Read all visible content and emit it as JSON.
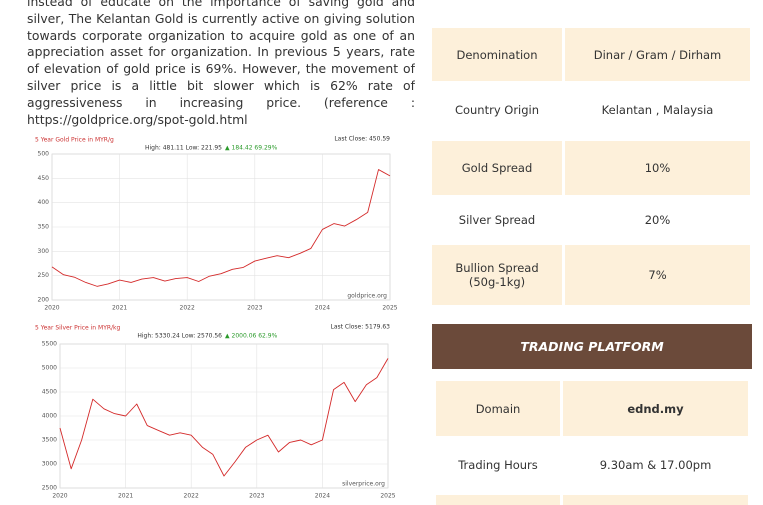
{
  "document": {
    "paragraph_lines": [
      "instead of educate on the importance of saving gold and",
      "silver, The Kelantan Gold is currently active on giving solution",
      "towards corporate organization to acquire gold as one of an",
      "appreciation asset for organization. In previous 5 years, rate",
      "of elevation of gold price is 69%. However, the movement of",
      "silver price is a little bit slower which is 62% rate of",
      "aggressiveness in increasing price. (reference :",
      "https://goldprice.org/spot-gold.html"
    ],
    "table": {
      "rows": [
        [
          "Denomination",
          "Dinar / Gram / Dirham"
        ],
        [
          "Country Origin",
          "Kelantan , Malaysia"
        ],
        [
          "Gold Spread",
          "10%"
        ],
        [
          "Silver Spread",
          "20%"
        ],
        [
          "Bullion Spread (50g-1kg)",
          "7%"
        ]
      ]
    },
    "trading_platform": {
      "title": "TRADING PLATFORM",
      "rows": [
        [
          "Domain",
          "ednd.my"
        ],
        [
          "Trading Hours",
          "9.30am & 17.00pm"
        ]
      ]
    }
  },
  "chart_data": [
    {
      "type": "line",
      "title": "5 Year Gold Price in MYR/g",
      "stats": "High: 481.11 Low: 221.95",
      "change": "▲ 184.42 69.29%",
      "last_close": "Last Close: 450.59",
      "source": "goldprice.org",
      "x": [
        2020,
        2020.17,
        2020.33,
        2020.5,
        2020.67,
        2020.83,
        2021,
        2021.17,
        2021.33,
        2021.5,
        2021.67,
        2021.83,
        2022,
        2022.17,
        2022.33,
        2022.5,
        2022.67,
        2022.83,
        2023,
        2023.17,
        2023.33,
        2023.5,
        2023.67,
        2023.83,
        2024,
        2024.17,
        2024.33,
        2024.5,
        2024.67,
        2024.83,
        2025
      ],
      "values": [
        268,
        252,
        247,
        236,
        228,
        233,
        241,
        236,
        243,
        246,
        239,
        244,
        246,
        238,
        249,
        254,
        263,
        267,
        280,
        286,
        291,
        287,
        296,
        306,
        345,
        357,
        352,
        365,
        380,
        468,
        455
      ],
      "color": "#d42a2a",
      "xlim": [
        2020,
        2025
      ],
      "ylim": [
        200,
        500
      ],
      "xticks": [
        2020,
        2021,
        2022,
        2023,
        2024,
        2025
      ],
      "yticks": [
        200,
        250,
        300,
        350,
        400,
        450,
        500
      ],
      "grid": true
    },
    {
      "type": "line",
      "title": "5 Year Silver Price in MYR/kg",
      "stats": "High: 5330.24 Low: 2570.56",
      "change": "▲ 2000.06 62.9%",
      "last_close": "Last Close: 5179.63",
      "source": "silverprice.org",
      "x": [
        2020,
        2020.17,
        2020.33,
        2020.5,
        2020.67,
        2020.83,
        2021,
        2021.17,
        2021.33,
        2021.5,
        2021.67,
        2021.83,
        2022,
        2022.17,
        2022.33,
        2022.5,
        2022.67,
        2022.83,
        2023,
        2023.17,
        2023.33,
        2023.5,
        2023.67,
        2023.83,
        2024,
        2024.17,
        2024.33,
        2024.5,
        2024.67,
        2024.83,
        2025
      ],
      "values": [
        3750,
        2900,
        3500,
        4350,
        4150,
        4050,
        4000,
        4250,
        3800,
        3700,
        3600,
        3650,
        3600,
        3350,
        3200,
        2750,
        3050,
        3350,
        3500,
        3600,
        3250,
        3450,
        3500,
        3400,
        3500,
        4550,
        4700,
        4300,
        4650,
        4800,
        5200
      ],
      "color": "#d42a2a",
      "xlim": [
        2020,
        2025
      ],
      "ylim": [
        2500,
        5500
      ],
      "xticks": [
        2020,
        2021,
        2022,
        2023,
        2024,
        2025
      ],
      "yticks": [
        2500,
        3000,
        3500,
        4000,
        4500,
        5000,
        5500
      ],
      "grid": true
    }
  ]
}
